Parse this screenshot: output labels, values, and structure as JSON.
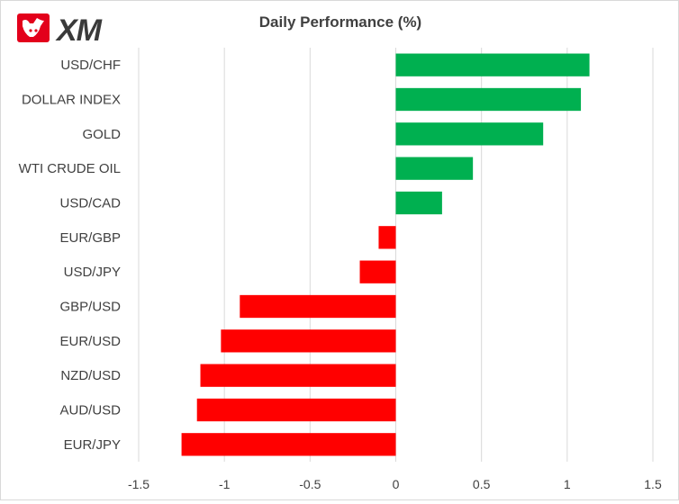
{
  "logo": {
    "text": "XM"
  },
  "chart_data": {
    "type": "bar",
    "orientation": "horizontal",
    "title": "Daily Performance  (%)",
    "categories": [
      "USD/CHF",
      "DOLLAR INDEX",
      "GOLD",
      "WTI CRUDE OIL",
      "USD/CAD",
      "EUR/GBP",
      "USD/JPY",
      "GBP/USD",
      "EUR/USD",
      "NZD/USD",
      "AUD/USD",
      "EUR/JPY"
    ],
    "values": [
      1.13,
      1.08,
      0.86,
      0.45,
      0.27,
      -0.1,
      -0.21,
      -0.91,
      -1.02,
      -1.14,
      -1.16,
      -1.25
    ],
    "xlim": [
      -1.5,
      1.5
    ],
    "xticks": [
      -1.5,
      -1,
      -0.5,
      0,
      0.5,
      1,
      1.5
    ],
    "xtick_labels": [
      "-1.5",
      "-1",
      "-0.5",
      "0",
      "0.5",
      "1",
      "1.5"
    ],
    "grid": "vertical-major",
    "colors": {
      "positive": "#00b050",
      "negative": "#ff0000",
      "grid": "#d9d9d9",
      "text": "#404040"
    },
    "legend": "none"
  }
}
